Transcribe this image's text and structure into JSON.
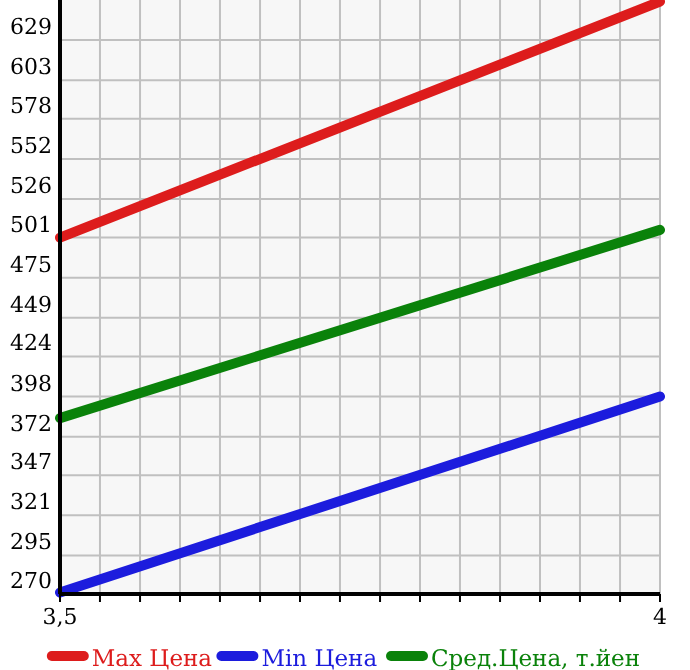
{
  "chart_data": {
    "type": "line",
    "x": [
      3.5,
      4
    ],
    "xlim": [
      3.5,
      4
    ],
    "xticks": [
      {
        "value": 3.5,
        "label": "3,5"
      },
      {
        "value": 3.5333,
        "label": null
      },
      {
        "value": 3.5667,
        "label": null
      },
      {
        "value": 3.6,
        "label": null
      },
      {
        "value": 3.6333,
        "label": null
      },
      {
        "value": 3.6667,
        "label": null
      },
      {
        "value": 3.7,
        "label": null
      },
      {
        "value": 3.7333,
        "label": null
      },
      {
        "value": 3.7667,
        "label": null
      },
      {
        "value": 3.8,
        "label": null
      },
      {
        "value": 3.8333,
        "label": null
      },
      {
        "value": 3.8667,
        "label": null
      },
      {
        "value": 3.9,
        "label": null
      },
      {
        "value": 3.9333,
        "label": null
      },
      {
        "value": 3.9667,
        "label": null
      },
      {
        "value": 4,
        "label": "4"
      }
    ],
    "ylim": [
      270,
      655
    ],
    "yticks": [
      270,
      295,
      321,
      347,
      372,
      398,
      424,
      449,
      475,
      501,
      526,
      552,
      578,
      603,
      629
    ],
    "grid": true,
    "legend": "bottom",
    "marker": "none",
    "line_style": "solid",
    "series": [
      {
        "name": "Max Цена",
        "color": "#dd1c1c",
        "values": [
          501,
          654
        ]
      },
      {
        "name": "Min Цена",
        "color": "#1c1cdd",
        "values": [
          271,
          398
        ]
      },
      {
        "name": "Сред.Цена, т.йен",
        "color": "#0a820a",
        "values": [
          384,
          506
        ]
      }
    ]
  }
}
